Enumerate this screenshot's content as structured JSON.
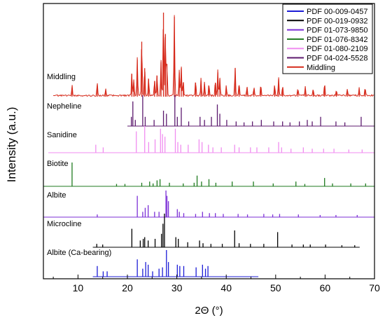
{
  "chart_data": {
    "type": "line",
    "title": "",
    "xlabel": "2Θ (°)",
    "ylabel": "Intensity (a.u.)",
    "xlim": [
      3,
      70
    ],
    "xticks": [
      "10",
      "20",
      "30",
      "40",
      "50",
      "60",
      "70"
    ],
    "yticks": [],
    "legend_position": "top-right",
    "legend": [
      {
        "label": "PDF 00-009-0457",
        "color": "#1c1cd6"
      },
      {
        "label": "PDF 00-019-0932",
        "color": "#000000"
      },
      {
        "label": "PDF 01-073-9850",
        "color": "#7b2fd6"
      },
      {
        "label": "PDF 01-076-8342",
        "color": "#1f7a1f"
      },
      {
        "label": "PDF 01-080-2109",
        "color": "#f08ef0"
      },
      {
        "label": "PDF 04-024-5528",
        "color": "#5c1a6e"
      },
      {
        "label": "Middling",
        "color": "#d62b1c"
      }
    ],
    "series": [
      {
        "name": "Middling",
        "kind": "pattern",
        "color": "#d62b1c",
        "x_range": [
          5,
          70
        ],
        "peaks": [
          [
            8.8,
            0.12
          ],
          [
            13.9,
            0.15
          ],
          [
            15.6,
            0.08
          ],
          [
            20.9,
            0.28
          ],
          [
            21.3,
            0.18
          ],
          [
            22.0,
            0.45
          ],
          [
            22.9,
            0.66
          ],
          [
            23.5,
            0.35
          ],
          [
            24.3,
            0.22
          ],
          [
            25.5,
            0.2
          ],
          [
            26.0,
            0.26
          ],
          [
            26.8,
            0.42
          ],
          [
            27.3,
            1.0
          ],
          [
            27.7,
            0.75
          ],
          [
            28.0,
            0.4
          ],
          [
            29.5,
            0.95
          ],
          [
            30.5,
            0.3
          ],
          [
            30.9,
            0.35
          ],
          [
            31.3,
            0.18
          ],
          [
            33.8,
            0.18
          ],
          [
            34.9,
            0.2
          ],
          [
            35.6,
            0.16
          ],
          [
            36.5,
            0.14
          ],
          [
            37.8,
            0.18
          ],
          [
            38.3,
            0.3
          ],
          [
            38.7,
            0.22
          ],
          [
            40.0,
            0.12
          ],
          [
            41.8,
            0.35
          ],
          [
            42.6,
            0.15
          ],
          [
            44.2,
            0.12
          ],
          [
            45.6,
            0.1
          ],
          [
            47.0,
            0.13
          ],
          [
            49.8,
            0.12
          ],
          [
            50.6,
            0.22
          ],
          [
            51.4,
            0.12
          ],
          [
            54.5,
            0.08
          ],
          [
            56.0,
            0.1
          ],
          [
            57.6,
            0.09
          ],
          [
            59.9,
            0.14
          ],
          [
            62.3,
            0.07
          ],
          [
            64.5,
            0.08
          ],
          [
            66.9,
            0.09
          ],
          [
            68.1,
            0.1
          ]
        ],
        "label": "Middling"
      },
      {
        "name": "PDF 04-024-5528",
        "kind": "stick",
        "color": "#5c1a6e",
        "x_range": [
          20,
          70
        ],
        "peaks": [
          [
            20.8,
            0.3
          ],
          [
            21.1,
            0.8
          ],
          [
            21.6,
            0.2
          ],
          [
            23.1,
            1.0
          ],
          [
            23.6,
            0.3
          ],
          [
            25.4,
            0.2
          ],
          [
            27.3,
            0.5
          ],
          [
            27.9,
            0.4
          ],
          [
            29.6,
            1.0
          ],
          [
            30.1,
            0.3
          ],
          [
            30.9,
            0.6
          ],
          [
            32.4,
            0.15
          ],
          [
            34.7,
            0.3
          ],
          [
            35.6,
            0.2
          ],
          [
            37.0,
            0.3
          ],
          [
            38.2,
            0.7
          ],
          [
            38.7,
            0.4
          ],
          [
            40.1,
            0.2
          ],
          [
            42.0,
            0.15
          ],
          [
            43.6,
            0.12
          ],
          [
            45.3,
            0.15
          ],
          [
            47.1,
            0.2
          ],
          [
            49.6,
            0.15
          ],
          [
            51.4,
            0.15
          ],
          [
            52.9,
            0.12
          ],
          [
            54.8,
            0.15
          ],
          [
            56.4,
            0.2
          ],
          [
            57.4,
            0.15
          ],
          [
            59.1,
            0.3
          ],
          [
            62.2,
            0.15
          ],
          [
            64.0,
            0.12
          ],
          [
            67.3,
            0.3
          ]
        ],
        "label": "Nepheline"
      },
      {
        "name": "PDF 01-080-2109",
        "kind": "stick",
        "color": "#f08ef0",
        "x_range": [
          4,
          70
        ],
        "peaks": [
          [
            13.6,
            0.3
          ],
          [
            15.1,
            0.2
          ],
          [
            21.8,
            0.8
          ],
          [
            23.5,
            1.0
          ],
          [
            24.3,
            0.4
          ],
          [
            25.6,
            0.5
          ],
          [
            26.7,
            0.9
          ],
          [
            27.1,
            0.7
          ],
          [
            27.6,
            0.6
          ],
          [
            29.7,
            0.9
          ],
          [
            30.2,
            0.4
          ],
          [
            30.8,
            0.3
          ],
          [
            32.3,
            0.3
          ],
          [
            34.5,
            0.5
          ],
          [
            35.1,
            0.4
          ],
          [
            36.4,
            0.3
          ],
          [
            37.3,
            0.2
          ],
          [
            39.0,
            0.2
          ],
          [
            41.7,
            0.3
          ],
          [
            42.6,
            0.2
          ],
          [
            44.9,
            0.2
          ],
          [
            46.2,
            0.2
          ],
          [
            48.6,
            0.2
          ],
          [
            50.6,
            0.4
          ],
          [
            51.2,
            0.2
          ],
          [
            53.1,
            0.15
          ],
          [
            55.6,
            0.2
          ],
          [
            57.4,
            0.15
          ],
          [
            59.7,
            0.15
          ],
          [
            61.8,
            0.15
          ],
          [
            64.8,
            0.12
          ],
          [
            67.5,
            0.12
          ]
        ],
        "label": "Sanidine"
      },
      {
        "name": "PDF 01-076-8342",
        "kind": "stick",
        "color": "#1f7a1f",
        "x_range": [
          3,
          70
        ],
        "peaks": [
          [
            8.8,
            1.0
          ],
          [
            17.8,
            0.1
          ],
          [
            19.5,
            0.1
          ],
          [
            22.9,
            0.15
          ],
          [
            24.5,
            0.2
          ],
          [
            25.2,
            0.12
          ],
          [
            26.0,
            0.25
          ],
          [
            26.6,
            0.3
          ],
          [
            28.5,
            0.15
          ],
          [
            31.3,
            0.12
          ],
          [
            33.5,
            0.15
          ],
          [
            34.1,
            0.45
          ],
          [
            35.0,
            0.2
          ],
          [
            36.5,
            0.3
          ],
          [
            37.9,
            0.15
          ],
          [
            41.2,
            0.2
          ],
          [
            45.5,
            0.2
          ],
          [
            49.5,
            0.12
          ],
          [
            54.1,
            0.2
          ],
          [
            55.9,
            0.1
          ],
          [
            59.9,
            0.35
          ],
          [
            61.5,
            0.12
          ],
          [
            65.2,
            0.12
          ],
          [
            68.2,
            0.12
          ]
        ],
        "label": "Biotite"
      },
      {
        "name": "PDF 01-073-9850",
        "kind": "stick",
        "color": "#7b2fd6",
        "x_range": [
          3,
          70
        ],
        "peaks": [
          [
            13.9,
            0.1
          ],
          [
            22.0,
            0.8
          ],
          [
            23.1,
            0.2
          ],
          [
            23.6,
            0.35
          ],
          [
            24.2,
            0.45
          ],
          [
            25.5,
            0.2
          ],
          [
            26.4,
            0.2
          ],
          [
            27.8,
            1.0
          ],
          [
            28.0,
            0.8
          ],
          [
            28.3,
            0.6
          ],
          [
            30.1,
            0.3
          ],
          [
            30.5,
            0.2
          ],
          [
            31.4,
            0.15
          ],
          [
            33.8,
            0.12
          ],
          [
            35.2,
            0.2
          ],
          [
            36.6,
            0.15
          ],
          [
            37.8,
            0.15
          ],
          [
            39.4,
            0.12
          ],
          [
            42.4,
            0.12
          ],
          [
            44.3,
            0.1
          ],
          [
            47.6,
            0.12
          ],
          [
            49.4,
            0.1
          ],
          [
            50.8,
            0.12
          ],
          [
            54.6,
            0.1
          ],
          [
            59.0,
            0.08
          ],
          [
            62.2,
            0.08
          ],
          [
            66.5,
            0.08
          ]
        ],
        "label": "Albite"
      },
      {
        "name": "PDF 00-019-0932",
        "kind": "stick",
        "color": "#000000",
        "x_range": [
          13,
          67
        ],
        "peaks": [
          [
            13.8,
            0.1
          ],
          [
            15.0,
            0.08
          ],
          [
            20.9,
            0.55
          ],
          [
            22.6,
            0.2
          ],
          [
            23.2,
            0.25
          ],
          [
            23.5,
            0.3
          ],
          [
            24.2,
            0.2
          ],
          [
            25.6,
            0.25
          ],
          [
            26.9,
            0.4
          ],
          [
            27.2,
            0.7
          ],
          [
            27.5,
            1.0
          ],
          [
            29.8,
            0.3
          ],
          [
            30.3,
            0.25
          ],
          [
            32.2,
            0.15
          ],
          [
            34.6,
            0.2
          ],
          [
            35.3,
            0.12
          ],
          [
            36.9,
            0.1
          ],
          [
            39.2,
            0.1
          ],
          [
            41.7,
            0.5
          ],
          [
            42.6,
            0.12
          ],
          [
            44.9,
            0.1
          ],
          [
            47.6,
            0.1
          ],
          [
            50.4,
            0.45
          ],
          [
            53.3,
            0.08
          ],
          [
            55.6,
            0.08
          ],
          [
            57.0,
            0.08
          ],
          [
            60.1,
            0.08
          ],
          [
            63.4,
            0.06
          ],
          [
            66.0,
            0.06
          ]
        ],
        "label": "Microcline"
      },
      {
        "name": "PDF 00-009-0457",
        "kind": "stick",
        "color": "#1c1cd6",
        "x_range": [
          13,
          46.5
        ],
        "peaks": [
          [
            13.9,
            0.4
          ],
          [
            15.1,
            0.2
          ],
          [
            15.9,
            0.2
          ],
          [
            22.0,
            0.65
          ],
          [
            23.1,
            0.3
          ],
          [
            23.7,
            0.55
          ],
          [
            24.2,
            0.45
          ],
          [
            25.1,
            0.2
          ],
          [
            26.4,
            0.3
          ],
          [
            27.1,
            0.35
          ],
          [
            27.9,
            1.0
          ],
          [
            28.3,
            0.55
          ],
          [
            30.1,
            0.45
          ],
          [
            30.6,
            0.4
          ],
          [
            31.4,
            0.4
          ],
          [
            33.9,
            0.35
          ],
          [
            35.2,
            0.45
          ],
          [
            35.8,
            0.3
          ],
          [
            36.3,
            0.4
          ]
        ],
        "label": "Albite (Ca-bearing)"
      }
    ]
  }
}
